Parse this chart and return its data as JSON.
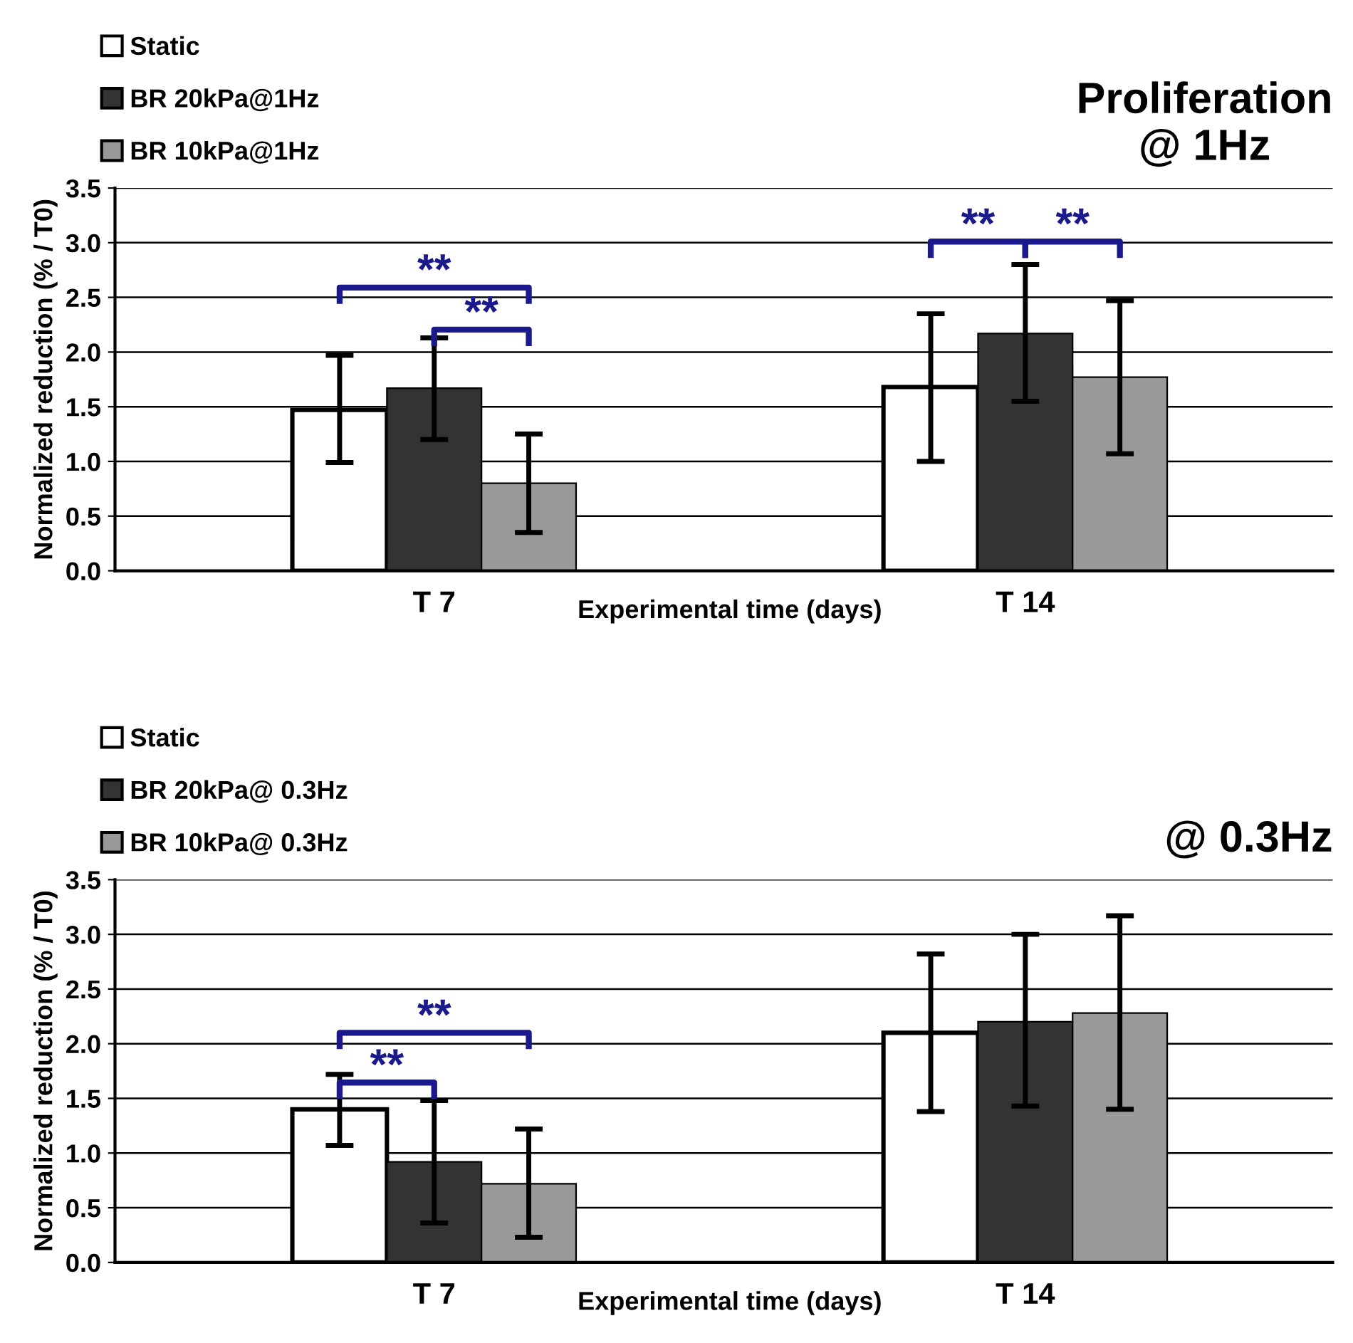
{
  "chart_data": [
    {
      "type": "bar",
      "title": "Proliferation\n@ 1Hz",
      "xlabel": "Experimental time (days)",
      "ylabel": "Normalized reduction (% / T0)",
      "categories": [
        "T 7",
        "T 14"
      ],
      "series": [
        {
          "name": "Static",
          "color": "#ffffff",
          "values": [
            1.47,
            1.68
          ],
          "errors": [
            [
              0.99,
              1.97
            ],
            [
              1.0,
              2.35
            ]
          ]
        },
        {
          "name": "BR 20kPa@1Hz",
          "color": "#333333",
          "values": [
            1.67,
            2.17
          ],
          "errors": [
            [
              1.2,
              2.13
            ],
            [
              1.55,
              2.8
            ]
          ]
        },
        {
          "name": "BR 10kPa@1Hz",
          "color": "#999999",
          "values": [
            0.8,
            1.77
          ],
          "errors": [
            [
              0.35,
              1.25
            ],
            [
              1.07,
              2.47
            ]
          ]
        }
      ],
      "annotations": [
        "**",
        "**",
        "**",
        "**"
      ],
      "ylim": [
        0,
        3.5
      ],
      "yticks": [
        {
          "value": 0,
          "label": "0.0"
        },
        0.5,
        {
          "value": 1,
          "label": "1.0"
        },
        1.5,
        {
          "value": 2,
          "label": "2.0"
        },
        2.5,
        {
          "value": 3,
          "label": "3.0"
        },
        3.5
      ],
      "grid": "y",
      "legend": "top left"
    },
    {
      "type": "bar",
      "title": "@ 0.3Hz",
      "xlabel": "Experimental time (days)",
      "ylabel": "Normalized reduction (% / T0)",
      "categories": [
        "T 7",
        "T 14"
      ],
      "series": [
        {
          "name": "Static",
          "color": "#ffffff",
          "values": [
            1.4,
            2.1
          ],
          "errors": [
            [
              1.07,
              1.72
            ],
            [
              1.38,
              2.82
            ]
          ]
        },
        {
          "name": "BR 20kPa@ 0.3Hz",
          "color": "#333333",
          "values": [
            0.92,
            2.2
          ],
          "errors": [
            [
              0.36,
              1.48
            ],
            [
              1.43,
              3.0
            ]
          ]
        },
        {
          "name": "BR 10kPa@ 0.3Hz",
          "color": "#999999",
          "values": [
            0.72,
            2.28
          ],
          "errors": [
            [
              0.23,
              1.22
            ],
            [
              1.4,
              3.17
            ]
          ]
        }
      ],
      "annotations": [
        "**",
        "**"
      ],
      "ylim": [
        0,
        3.5
      ],
      "yticks": [
        {
          "value": 0,
          "label": "0.0"
        },
        0.5,
        {
          "value": 1,
          "label": "1.0"
        },
        1.5,
        {
          "value": 2,
          "label": "2.0"
        },
        2.5,
        {
          "value": 3,
          "label": "3.0"
        },
        3.5
      ],
      "grid": "y",
      "legend": "top left"
    }
  ]
}
